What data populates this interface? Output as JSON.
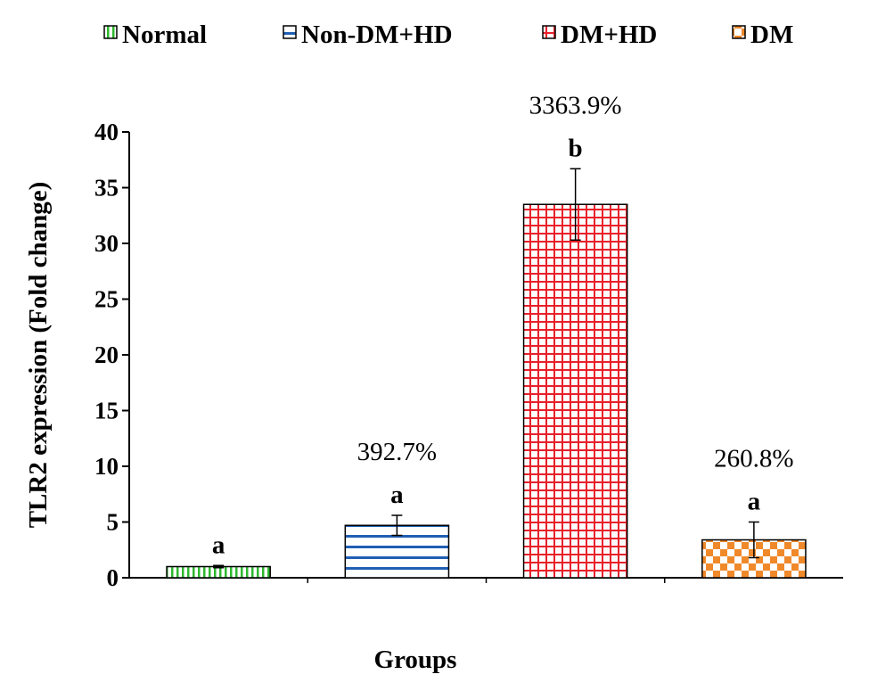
{
  "chart_data": {
    "type": "bar",
    "title": "",
    "xlabel": "Groups",
    "ylabel": "TLR2 expression (Fold change)",
    "ylim": [
      0,
      40
    ],
    "yticks": [
      "0",
      "5",
      "10",
      "15",
      "20",
      "25",
      "30",
      "35",
      "40"
    ],
    "ytick_values": [
      0,
      5,
      10,
      15,
      20,
      25,
      30,
      35,
      40
    ],
    "legend_position": "top",
    "categories": [
      "Normal",
      "Non-DM+HD",
      "DM+HD",
      "DM"
    ],
    "values": [
      1.0,
      4.7,
      33.5,
      3.4
    ],
    "errors": [
      0.1,
      0.9,
      3.2,
      1.6
    ],
    "significance": [
      "a",
      "a",
      "b",
      "a"
    ],
    "percent_labels": [
      "",
      "392.7%",
      "3363.9%",
      "260.8%"
    ],
    "series_colors": [
      "#2db82d",
      "#1f5fb4",
      "#e8202a",
      "#f0892a"
    ],
    "patterns": [
      "vertical-stripes",
      "horizontal-stripes",
      "grid",
      "checker"
    ]
  }
}
